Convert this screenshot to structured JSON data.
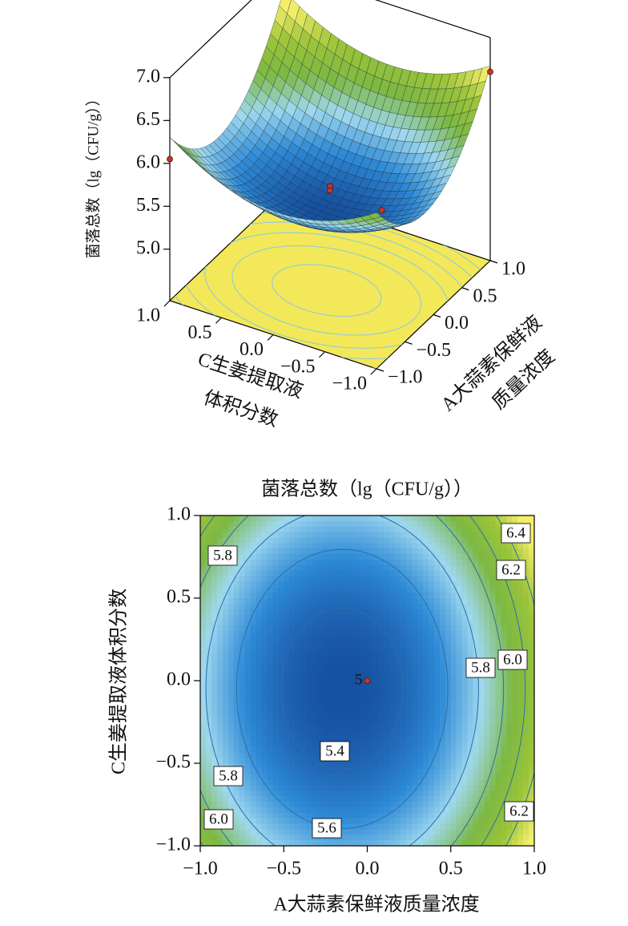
{
  "chart_data": [
    {
      "type": "surface3d",
      "zlabel": "菌落总数（lg（CFU/g））",
      "xlabel": [
        "A大蒜素保鲜液",
        "质量浓度"
      ],
      "ylabel": [
        "C生姜提取液",
        "体积分数"
      ],
      "xlim": [
        -1,
        1
      ],
      "ylim": [
        -1,
        1
      ],
      "zlim": [
        4.4,
        7
      ],
      "xticks": [
        {
          "value": -1,
          "label": "−1.0"
        },
        {
          "value": -0.5,
          "label": "−0.5"
        },
        {
          "value": 0,
          "label": "0.0"
        },
        0.5,
        {
          "value": 1,
          "label": "1.0"
        }
      ],
      "yticks": [
        {
          "value": -1,
          "label": "−1.0"
        },
        {
          "value": -0.5,
          "label": "−0.5"
        },
        {
          "value": 0,
          "label": "0.0"
        },
        0.5,
        {
          "value": 1,
          "label": "1.0"
        }
      ],
      "zticks": [
        {
          "value": 5,
          "label": "5.0"
        },
        5.5,
        {
          "value": 6,
          "label": "6.0"
        },
        6.5,
        {
          "value": 7,
          "label": "7.0"
        }
      ],
      "surface": {
        "min": 5.3,
        "center": [
          -0.15,
          -0.05
        ],
        "curvature": [
          0.75,
          0.42
        ]
      },
      "colormap": [
        "#1650a0",
        "#2e8ad6",
        "#9fd8ee",
        "#7cb843",
        "#9cc43a",
        "#f4ee6a"
      ],
      "colorlim": [
        5.3,
        6.6
      ],
      "floor_color": "#f2e85a",
      "contour_color": "#8cc8e0",
      "levels": [
        5.4,
        5.6,
        5.8,
        6,
        6.2,
        6.4
      ],
      "points": {
        "x": [
          1,
          -1,
          1,
          0,
          0,
          0
        ],
        "y": [
          1,
          1,
          -1,
          0,
          0,
          -0.5
        ],
        "z": [
          6.9,
          6.05,
          6.6,
          5.5,
          5.45,
          5.42
        ]
      },
      "point_color": "#c0392b"
    },
    {
      "type": "contour",
      "title": "菌落总数（lg（CFU/g））",
      "xlabel": "A大蒜素保鲜液质量浓度",
      "ylabel": "C生姜提取液体积分数",
      "xlim": [
        -1,
        1
      ],
      "ylim": [
        -1,
        1
      ],
      "xticks": [
        {
          "value": -1,
          "label": "−1.0"
        },
        {
          "value": -0.5,
          "label": "−0.5"
        },
        {
          "value": 0,
          "label": "0.0"
        },
        0.5,
        {
          "value": 1,
          "label": "1.0"
        }
      ],
      "yticks": [
        {
          "value": -1,
          "label": "−1.0"
        },
        {
          "value": -0.5,
          "label": "−0.5"
        },
        {
          "value": 0,
          "label": "0.0"
        },
        0.5,
        {
          "value": 1,
          "label": "1.0"
        }
      ],
      "surface": {
        "min": 5.3,
        "center": [
          -0.15,
          -0.05
        ],
        "curvature": [
          0.75,
          0.42
        ]
      },
      "colormap": [
        "#1650a0",
        "#2e8ad6",
        "#9fd8ee",
        "#7cb843",
        "#9cc43a",
        "#f4ee6a"
      ],
      "colorlim": [
        5.3,
        6.6
      ],
      "contour_color": "#2a6fa8",
      "levels": [
        5.4,
        5.6,
        5.8,
        {
          "value": 6,
          "label": "6.0"
        },
        6.2,
        6.4
      ],
      "contour_labels": [
        5.8,
        6.4,
        6.2,
        {
          "value": 6,
          "label": "6.0"
        },
        5.8,
        5.4,
        5.8,
        {
          "value": 6,
          "label": "6.0"
        },
        5.6,
        6.2
      ],
      "points": {
        "x": [
          0
        ],
        "y": [
          0
        ],
        "replicates": [
          5
        ]
      },
      "point_color": "#c0392b"
    }
  ]
}
